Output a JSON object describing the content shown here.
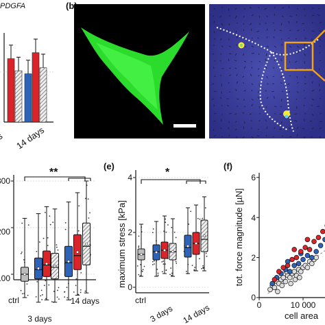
{
  "figure": {
    "top_left_text": "PDGFA",
    "panel_b_label": "(b)",
    "panel_e_label": "(e)",
    "panel_f_label": "(f)"
  },
  "colors": {
    "ctrl_gray": "#bdbdbd",
    "blue": "#2f63b8",
    "red": "#d9242a",
    "hatched": "#e6e6e6",
    "cell_green": "#2ee82e",
    "tfm_bg": "#3b3d9c",
    "highlight_orange": "#f2a31b"
  },
  "chart_data": [
    {
      "type": "bar",
      "panel": "(a) partial",
      "categories": [
        "3 days",
        "14 days"
      ],
      "category_labels_visible": [
        "ys",
        "14 days"
      ],
      "series": [
        {
          "values": [
            null,
            3.2
          ]
        },
        {
          "values": [
            4.2,
            4.6
          ]
        },
        {
          "values": [
            3.4,
            3.6
          ]
        }
      ],
      "series_colors": [
        "#2f63b8",
        "#d9242a",
        "#dddddd"
      ],
      "grid": false
    },
    {
      "type": "box",
      "panel": "(d) partial",
      "categories": [
        "ctrl",
        "3 days",
        "14 days"
      ],
      "ytick_labels": [
        "300",
        "200",
        "100"
      ],
      "significance": "**",
      "boxes": [
        {
          "group": "ctrl",
          "color": "#bdbdbd",
          "min": 50,
          "q1": 85,
          "median": 100,
          "q3": 115,
          "max": 220
        },
        {
          "group": "3 days",
          "color": "#2f63b8",
          "min": 40,
          "q1": 90,
          "median": 110,
          "q3": 135,
          "max": 230
        },
        {
          "group": "3 days",
          "color": "#d9242a",
          "min": 45,
          "q1": 95,
          "median": 120,
          "q3": 150,
          "max": 245
        },
        {
          "group": "3 days",
          "color": "hatched",
          "min": 40,
          "q1": 90,
          "median": 115,
          "q3": 145,
          "max": 240
        },
        {
          "group": "14 days",
          "color": "#2f63b8",
          "min": 45,
          "q1": 95,
          "median": 125,
          "q3": 160,
          "max": 255
        },
        {
          "group": "14 days",
          "color": "#d9242a",
          "min": 55,
          "q1": 110,
          "median": 140,
          "q3": 185,
          "max": 275
        },
        {
          "group": "14 days",
          "color": "hatched",
          "min": 60,
          "q1": 120,
          "median": 160,
          "q3": 210,
          "max": 300
        }
      ]
    },
    {
      "type": "box",
      "panel": "(e)",
      "ylabel": "maximum stress [kPa]",
      "categories": [
        "ctrl",
        "3 days",
        "14 days"
      ],
      "yticks": [
        0,
        2,
        4
      ],
      "ylim": [
        0,
        4.2
      ],
      "significance": "*",
      "boxes": [
        {
          "group": "ctrl",
          "color": "#bdbdbd",
          "min": 0.4,
          "q1": 1.0,
          "median": 1.2,
          "q3": 1.4,
          "max": 2.3
        },
        {
          "group": "3 days",
          "color": "#2f63b8",
          "min": 0.4,
          "q1": 1.0,
          "median": 1.3,
          "q3": 1.55,
          "max": 2.4
        },
        {
          "group": "3 days",
          "color": "#d9242a",
          "min": 0.5,
          "q1": 1.05,
          "median": 1.35,
          "q3": 1.65,
          "max": 2.6
        },
        {
          "group": "3 days",
          "color": "hatched",
          "min": 0.4,
          "q1": 1.0,
          "median": 1.3,
          "q3": 1.6,
          "max": 2.5
        },
        {
          "group": "14 days",
          "color": "#2f63b8",
          "min": 0.5,
          "q1": 1.1,
          "median": 1.45,
          "q3": 1.9,
          "max": 2.9
        },
        {
          "group": "14 days",
          "color": "#d9242a",
          "min": 0.6,
          "q1": 1.2,
          "median": 1.6,
          "q3": 2.0,
          "max": 3.0
        },
        {
          "group": "14 days",
          "color": "hatched",
          "min": 0.6,
          "q1": 1.3,
          "median": 1.75,
          "q3": 2.45,
          "max": 3.3
        }
      ]
    },
    {
      "type": "scatter",
      "panel": "(f)",
      "ylabel": "tot. force magnitude [µN]",
      "xlabel": "cell area",
      "xtick_labels": [
        "0",
        "10 000"
      ],
      "yticks": [
        0,
        2,
        4,
        6
      ],
      "ylim": [
        0,
        6.5
      ],
      "xlim": [
        0,
        17000
      ],
      "series": [
        {
          "color": "#dddddd",
          "points": [
            [
              2500,
              0.4
            ],
            [
              3000,
              0.6
            ],
            [
              3500,
              0.5
            ],
            [
              4000,
              0.8
            ],
            [
              4500,
              0.7
            ],
            [
              5000,
              0.9
            ],
            [
              5500,
              1.0
            ],
            [
              6000,
              0.8
            ],
            [
              6500,
              1.1
            ],
            [
              7000,
              1.0
            ],
            [
              7500,
              1.2
            ],
            [
              8000,
              1.3
            ],
            [
              8500,
              1.1
            ],
            [
              9000,
              1.4
            ],
            [
              9500,
              1.3
            ],
            [
              10000,
              1.5
            ],
            [
              10500,
              1.6
            ],
            [
              11000,
              1.5
            ],
            [
              11500,
              1.8
            ],
            [
              12000,
              1.7
            ],
            [
              12500,
              1.9
            ],
            [
              13000,
              2.0
            ],
            [
              4200,
              0.3
            ],
            [
              5200,
              0.6
            ],
            [
              6200,
              1.3
            ],
            [
              7200,
              0.7
            ],
            [
              8200,
              0.9
            ],
            [
              9200,
              1.0
            ]
          ]
        },
        {
          "color": "#2f63b8",
          "points": [
            [
              3000,
              0.7
            ],
            [
              4000,
              1.0
            ],
            [
              5000,
              1.2
            ],
            [
              6000,
              1.4
            ],
            [
              7000,
              1.3
            ],
            [
              8000,
              1.6
            ],
            [
              9000,
              1.7
            ],
            [
              10000,
              1.9
            ],
            [
              11000,
              2.1
            ],
            [
              12000,
              2.0
            ],
            [
              13000,
              2.3
            ],
            [
              14000,
              2.6
            ],
            [
              15000,
              2.9
            ],
            [
              6500,
              1.8
            ],
            [
              9500,
              2.2
            ]
          ]
        },
        {
          "color": "#d9242a",
          "points": [
            [
              3500,
              0.9
            ],
            [
              4500,
              1.3
            ],
            [
              5500,
              1.5
            ],
            [
              6500,
              1.6
            ],
            [
              7500,
              1.9
            ],
            [
              8500,
              2.0
            ],
            [
              9500,
              2.3
            ],
            [
              10500,
              2.5
            ],
            [
              11500,
              2.4
            ],
            [
              12500,
              2.8
            ],
            [
              13500,
              3.0
            ],
            [
              14500,
              3.3
            ],
            [
              15500,
              3.6
            ],
            [
              16000,
              4.2
            ],
            [
              16500,
              4.4
            ],
            [
              8000,
              2.4
            ],
            [
              11000,
              2.9
            ]
          ]
        }
      ]
    }
  ],
  "panel_b": {
    "scale_bar_color": "#ffffff",
    "dotted_line_color": "#ffffff"
  }
}
